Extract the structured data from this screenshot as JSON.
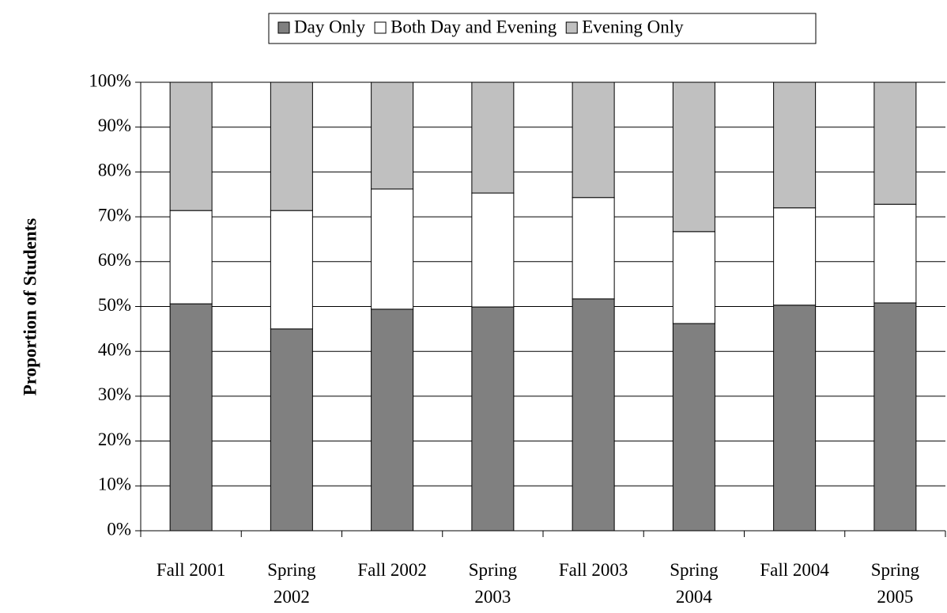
{
  "chart_data": {
    "type": "stacked_bar",
    "y_label": "Proportion of Students",
    "categories": [
      "Fall 2001",
      "Spring 2002",
      "Fall 2002",
      "Spring 2003",
      "Fall 2003",
      "Spring 2004",
      "Fall 2004",
      "Spring 2005"
    ],
    "series": [
      {
        "name": "Day Only",
        "color": "#808080",
        "values": [
          50.6,
          45.0,
          49.4,
          49.9,
          51.7,
          46.2,
          50.3,
          50.8
        ]
      },
      {
        "name": "Both Day and Evening",
        "color": "#ffffff",
        "values": [
          20.8,
          26.4,
          26.8,
          25.4,
          22.6,
          20.5,
          21.7,
          22.0
        ]
      },
      {
        "name": "Evening Only",
        "color": "#c0c0c0",
        "values": [
          28.6,
          28.6,
          23.8,
          24.7,
          25.7,
          33.3,
          28.0,
          27.2
        ]
      }
    ],
    "ylim": [
      0,
      100
    ],
    "yticks": [
      {
        "value": 0,
        "label": "0%"
      },
      {
        "value": 10,
        "label": "10%"
      },
      {
        "value": 20,
        "label": "20%"
      },
      {
        "value": 30,
        "label": "30%"
      },
      {
        "value": 40,
        "label": "40%"
      },
      {
        "value": 50,
        "label": "50%"
      },
      {
        "value": 60,
        "label": "60%"
      },
      {
        "value": 70,
        "label": "70%"
      },
      {
        "value": 80,
        "label": "80%"
      },
      {
        "value": 90,
        "label": "90%"
      },
      {
        "value": 100,
        "label": "100%"
      }
    ],
    "grid": true,
    "legend": "top"
  }
}
